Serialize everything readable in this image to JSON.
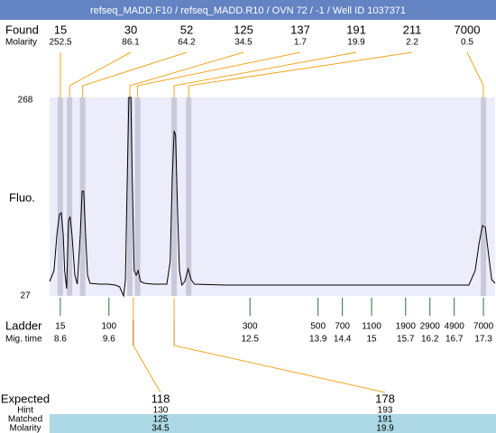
{
  "chart_data": {
    "type": "electropherogram",
    "title": "refseq_MADD.F10 / refseq_MADD.R10 / OVN 72 / -1 / Well ID 1037371",
    "y_label": "Fluo.",
    "ylim": [
      27,
      268
    ],
    "yticks": [
      27,
      268
    ],
    "xlim": [
      8.38,
      17.54
    ],
    "color": "#000000",
    "x": [
      8.38,
      8.47,
      8.53,
      8.58,
      8.62,
      8.66,
      8.69,
      8.73,
      8.77,
      8.8,
      8.84,
      8.9,
      8.95,
      9.01,
      9.05,
      9.08,
      9.12,
      9.16,
      9.21,
      9.4,
      9.58,
      9.73,
      9.82,
      9.9,
      9.94,
      9.97,
      10.01,
      10.05,
      10.08,
      10.12,
      10.16,
      10.2,
      10.25,
      10.33,
      10.51,
      10.79,
      10.86,
      10.9,
      10.94,
      10.97,
      11.01,
      11.05,
      11.1,
      11.16,
      11.23,
      11.29,
      11.36,
      12.0,
      13.85,
      15.71,
      17.0,
      17.13,
      17.21,
      17.28,
      17.34,
      17.39,
      17.47,
      17.54
    ],
    "values": [
      44.5,
      57.7,
      101.5,
      125.6,
      127.8,
      101.5,
      57.7,
      35.8,
      117.9,
      123.4,
      101.5,
      52.2,
      41.2,
      101.5,
      154.1,
      154.1,
      101.5,
      52.2,
      42.3,
      41.2,
      41.2,
      40.1,
      38,
      27,
      46.7,
      145.3,
      268,
      268,
      167.2,
      57.7,
      52.2,
      57.7,
      44.5,
      42.3,
      41.2,
      41.2,
      68.6,
      167.2,
      227.5,
      222,
      134.4,
      57.7,
      40.1,
      44.5,
      59.9,
      46.7,
      41.2,
      40.1,
      40.1,
      40.1,
      40.1,
      57.7,
      90.5,
      112.4,
      110.3,
      85.1,
      46.7,
      42.3
    ],
    "found": {
      "label": "Found",
      "molarity_label": "Molarity",
      "sizes": [
        15,
        30,
        52,
        125,
        137,
        191,
        211,
        7000
      ],
      "molarity": [
        252.5,
        86.1,
        64.2,
        34.5,
        1.7,
        19.9,
        2.2,
        0.5
      ],
      "times": [
        8.6,
        8.79,
        9.06,
        10.03,
        10.19,
        10.94,
        11.24,
        17.3
      ]
    },
    "ladder": {
      "label": "Ladder",
      "time_label": "Mig. time",
      "sizes": [
        15,
        100,
        300,
        500,
        700,
        1100,
        1900,
        2900,
        4900,
        7000
      ],
      "times": [
        8.6,
        9.6,
        12.5,
        13.9,
        14.4,
        15,
        15.7,
        16.2,
        16.7,
        17.3
      ]
    },
    "expected": {
      "labels": [
        "Expected",
        "Hint",
        "Matched",
        "Molarity"
      ],
      "expected": [
        118,
        178
      ],
      "hint": [
        130,
        193
      ],
      "matched": [
        125,
        191
      ],
      "molarity": [
        34.5,
        19.9
      ],
      "times": [
        10.1,
        10.94
      ]
    }
  }
}
